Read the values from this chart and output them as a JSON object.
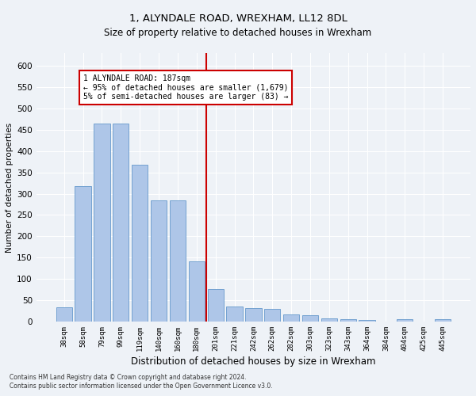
{
  "title": "1, ALYNDALE ROAD, WREXHAM, LL12 8DL",
  "subtitle": "Size of property relative to detached houses in Wrexham",
  "xlabel": "Distribution of detached houses by size in Wrexham",
  "ylabel": "Number of detached properties",
  "categories": [
    "38sqm",
    "58sqm",
    "79sqm",
    "99sqm",
    "119sqm",
    "140sqm",
    "160sqm",
    "180sqm",
    "201sqm",
    "221sqm",
    "242sqm",
    "262sqm",
    "282sqm",
    "303sqm",
    "323sqm",
    "343sqm",
    "364sqm",
    "384sqm",
    "404sqm",
    "425sqm",
    "445sqm"
  ],
  "values": [
    33,
    317,
    465,
    465,
    368,
    285,
    285,
    142,
    76,
    35,
    32,
    30,
    16,
    14,
    7,
    5,
    4,
    0,
    6,
    0,
    5
  ],
  "bar_color": "#aec6e8",
  "bar_edge_color": "#6699cc",
  "vline_x": 7.5,
  "vline_color": "#cc0000",
  "annotation_title": "1 ALYNDALE ROAD: 187sqm",
  "annotation_line1": "← 95% of detached houses are smaller (1,679)",
  "annotation_line2": "5% of semi-detached houses are larger (83) →",
  "annotation_box_color": "#cc0000",
  "ylim": [
    0,
    630
  ],
  "yticks": [
    0,
    50,
    100,
    150,
    200,
    250,
    300,
    350,
    400,
    450,
    500,
    550,
    600
  ],
  "footer1": "Contains HM Land Registry data © Crown copyright and database right 2024.",
  "footer2": "Contains public sector information licensed under the Open Government Licence v3.0.",
  "background_color": "#eef2f7",
  "plot_background": "#eef2f7",
  "title_fontsize": 9.5,
  "subtitle_fontsize": 8.5,
  "xlabel_fontsize": 8.5,
  "ylabel_fontsize": 7.5
}
